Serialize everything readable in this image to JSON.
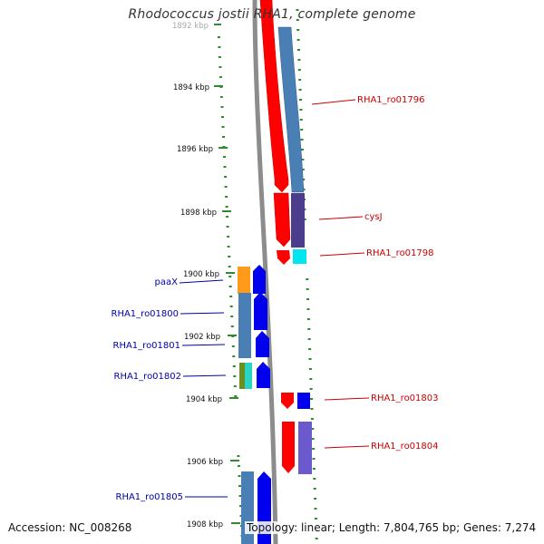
{
  "title": "Rhodococcus jostii RHA1, complete genome",
  "footer": {
    "accession": "Accession: NC_008268",
    "summary": "Topology: linear; Length: 7,804,765 bp; Genes: 7,274"
  },
  "colors": {
    "background": "#ffffff",
    "backbone": "#8c8c8c",
    "tick": "#2e8b2e",
    "right_label": "#cc0000",
    "left_label": "#0000aa",
    "gene_red": "#ff0000",
    "gene_steelblue": "#4a7fb5",
    "gene_blue": "#0000ee",
    "gene_purple": "#4b3c8c",
    "gene_cyan": "#00e5ee",
    "gene_orange": "#ff9a1a",
    "gene_olive": "#6b8e23"
  },
  "scale": {
    "unit": "kbp",
    "ticks": [
      {
        "kbp": 1892,
        "label": "1892 kbp"
      },
      {
        "kbp": 1894,
        "label": "1894 kbp"
      },
      {
        "kbp": 1896,
        "label": "1896 kbp"
      },
      {
        "kbp": 1898,
        "label": "1898 kbp"
      },
      {
        "kbp": 1900,
        "label": "1900 kbp"
      },
      {
        "kbp": 1902,
        "label": "1902 kbp"
      },
      {
        "kbp": 1904,
        "label": "1904 kbp"
      },
      {
        "kbp": 1906,
        "label": "1906 kbp"
      },
      {
        "kbp": 1908,
        "label": "1908 kbp"
      }
    ]
  },
  "genes_right": [
    {
      "label": "RHA1_ro01796"
    },
    {
      "label": "cysJ"
    },
    {
      "label": "RHA1_ro01798"
    },
    {
      "label": "RHA1_ro01803"
    },
    {
      "label": "RHA1_ro01804"
    }
  ],
  "genes_left": [
    {
      "label": "paaX"
    },
    {
      "label": "RHA1_ro01800"
    },
    {
      "label": "RHA1_ro01801"
    },
    {
      "label": "RHA1_ro01802"
    },
    {
      "label": "RHA1_ro01805"
    }
  ]
}
